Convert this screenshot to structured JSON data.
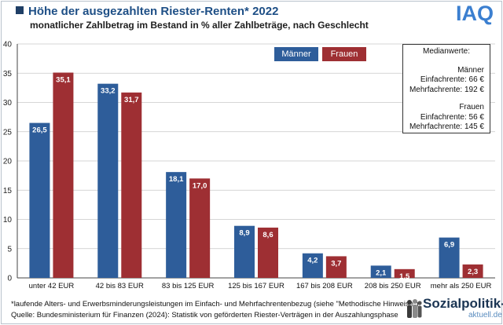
{
  "header": {
    "title": "Höhe der ausgezahlten Riester-Renten* 2022",
    "subtitle": "monatlicher Zahlbetrag im Bestand in % aller Zahlbeträge, nach Geschlecht",
    "logo": "IAQ"
  },
  "legend": {
    "men": "Männer",
    "women": "Frauen"
  },
  "median_box": {
    "heading": "Medianwerte:",
    "men_label": "Männer",
    "men_single": "Einfachrente: 66 €",
    "men_multi": "Mehrfachrente: 192 €",
    "women_label": "Frauen",
    "women_single": "Einfachrente: 56 €",
    "women_multi": "Mehrfachrente: 145 €"
  },
  "footer": {
    "note": "*laufende Alters- und Erwerbsminderungsleistungen im Einfach- und Mehrfachrentenbezug (siehe \"Methodische Hinweise\")",
    "source": "Quelle: Bundesministerium für Finanzen (2024): Statistik von geförderten Riester-Verträgen in der Auszahlungsphase",
    "brand_name": "Sozialpolitik-",
    "brand_sub": "aktuell.de"
  },
  "colors": {
    "men": "#2e5d9a",
    "women": "#9e2f33",
    "grid": "#c8c8c8"
  },
  "chart_data": {
    "type": "bar",
    "categories": [
      "unter 42 EUR",
      "42 bis  83 EUR",
      "83 bis  125 EUR",
      "125 bis 167 EUR",
      "167 bis 208 EUR",
      "208 bis 250 EUR",
      "mehr als 250 EUR"
    ],
    "series": [
      {
        "name": "Männer",
        "values": [
          26.5,
          33.2,
          18.1,
          8.9,
          4.2,
          2.1,
          6.9
        ],
        "labels": [
          "26,5",
          "33,2",
          "18,1",
          "8,9",
          "4,2",
          "2,1",
          "6,9"
        ]
      },
      {
        "name": "Frauen",
        "values": [
          35.1,
          31.7,
          17.0,
          8.6,
          3.7,
          1.5,
          2.3
        ],
        "labels": [
          "35,1",
          "31,7",
          "17,0",
          "8,6",
          "3,7",
          "1,5",
          "2,3"
        ]
      }
    ],
    "ylim": [
      0,
      40
    ],
    "yticks": [
      0,
      5,
      10,
      15,
      20,
      25,
      30,
      35,
      40
    ],
    "grid": true,
    "legend_position": "top-right"
  }
}
